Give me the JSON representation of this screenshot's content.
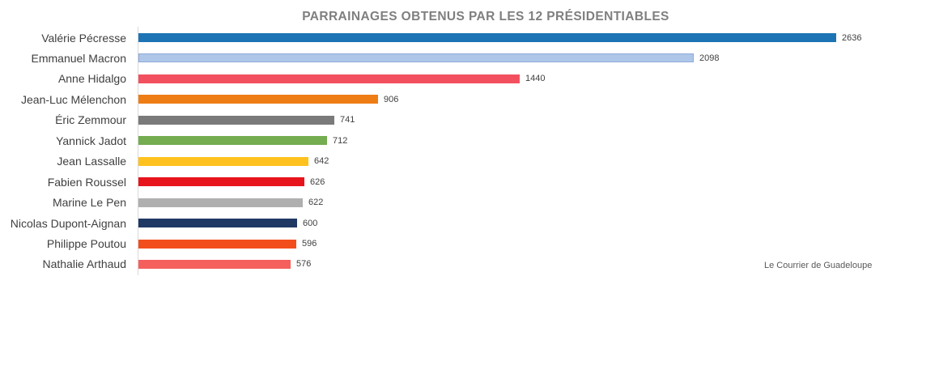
{
  "chart_data": {
    "type": "bar",
    "orientation": "horizontal",
    "title": "PARRAINAGES OBTENUS PAR LES 12 PRÉSIDENTIABLES",
    "source": "Le Courrier de Guadeloupe",
    "categories": [
      "Valérie Pécresse",
      "Emmanuel Macron",
      "Anne Hidalgo",
      "Jean-Luc Mélenchon",
      "Éric Zemmour",
      "Yannick Jadot",
      "Jean Lassalle",
      "Fabien Roussel",
      "Marine Le Pen",
      "Nicolas Dupont-Aignan",
      "Philippe Poutou",
      "Nathalie Arthaud"
    ],
    "values": [
      2636,
      2098,
      1440,
      906,
      741,
      712,
      642,
      626,
      622,
      600,
      596,
      576
    ],
    "bar_colors": [
      "#1C74B4",
      "#AEC7E8",
      "#F3505F",
      "#EE7D16",
      "#7A7A7A",
      "#74AC50",
      "#FFC11E",
      "#E8141C",
      "#AFAFAF",
      "#1F3864",
      "#F24E1B",
      "#F5605C"
    ],
    "bar_border_colors": [
      null,
      "#8FAADC",
      null,
      null,
      null,
      null,
      null,
      null,
      null,
      null,
      null,
      null
    ],
    "value_labels_shown": true,
    "xlim": [
      0,
      2700
    ],
    "grid": false,
    "legend": false,
    "title_color": "#7F7F7F",
    "label_color": "#3F3F3F",
    "value_label_color": "#404040"
  }
}
